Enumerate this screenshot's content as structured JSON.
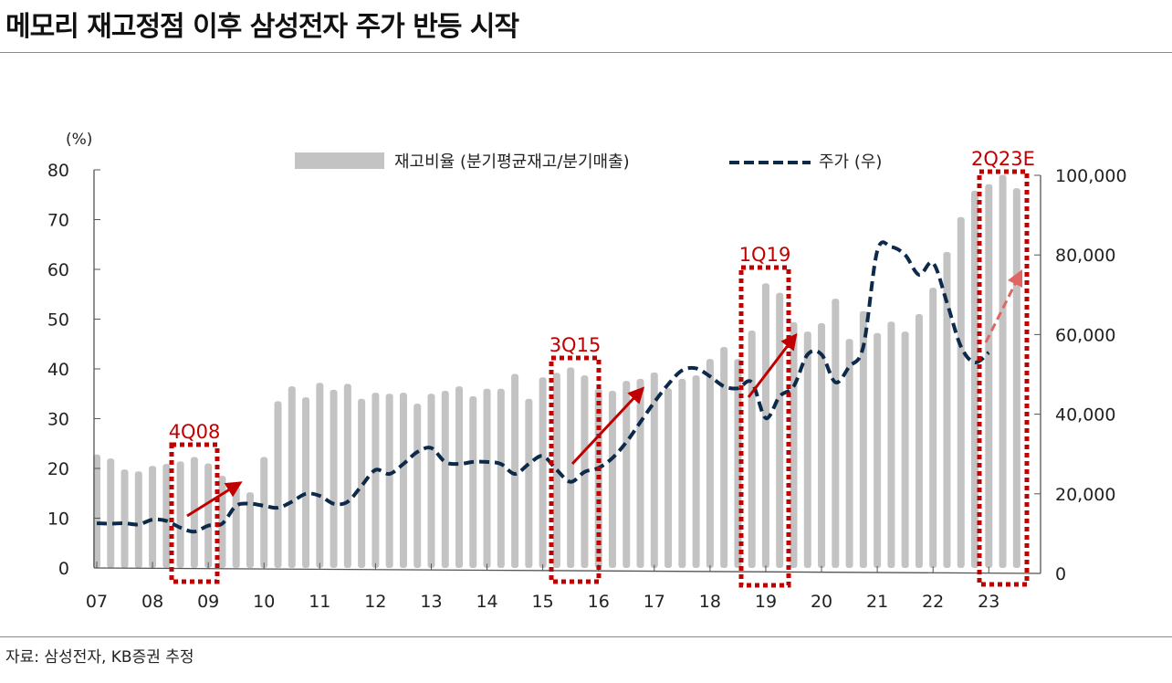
{
  "title": "메모리 재고정점 이후 삼성전자 주가 반등 시작",
  "source": "자료: 삼성전자, KB증권 추정",
  "colors": {
    "bar": "#c3c3c3",
    "line": "#0d2a4a",
    "highlight": "#c00000",
    "forecast_arrow": "#e06666"
  },
  "chart_data": {
    "type": "bar+line",
    "title": "메모리 재고정점 이후 삼성전자 주가 반등 시작",
    "left_axis": {
      "unit_label": "(%)",
      "range": [
        0,
        80
      ],
      "ticks": [
        0,
        10,
        20,
        30,
        40,
        50,
        60,
        70,
        80
      ]
    },
    "right_axis": {
      "range": [
        0,
        100000
      ],
      "ticks": [
        "0",
        "20,000",
        "40,000",
        "60,000",
        "80,000",
        "100,000"
      ],
      "tick_values": [
        0,
        20000,
        40000,
        60000,
        80000,
        100000
      ]
    },
    "x_tick_labels": [
      "07",
      "08",
      "09",
      "10",
      "11",
      "12",
      "13",
      "14",
      "15",
      "16",
      "17",
      "18",
      "19",
      "20",
      "21",
      "22",
      "23"
    ],
    "legend": [
      {
        "name": "재고비율 (분기평균재고/분기매출)",
        "type": "bar"
      },
      {
        "name": "주가 (우)",
        "type": "dashed-line"
      }
    ],
    "legend_position": "top",
    "series": [
      {
        "name": "재고비율 (분기평균재고/분기매출)",
        "axis": "left",
        "start": "1Q07",
        "values": [
          22.8,
          22,
          19.8,
          19.4,
          20.5,
          20.9,
          21.4,
          22.3,
          21,
          18.5,
          16.5,
          15.2,
          22.3,
          33.5,
          36.5,
          34.3,
          37.2,
          35.8,
          37,
          34,
          35.2,
          35,
          35.2,
          33,
          35,
          35.6,
          36.5,
          34.5,
          36,
          36,
          39,
          34,
          38.3,
          39.2,
          40.3,
          38.7,
          36,
          35.6,
          37.6,
          38,
          39.3,
          36.1,
          38,
          38.7,
          42,
          44.4,
          42,
          47.7,
          57.2,
          55.3,
          49.4,
          47.5,
          49.2,
          54.1,
          46,
          51.6,
          47.2,
          49.5,
          47.5,
          51,
          56.3,
          63.5,
          70.5,
          75.8,
          77.1,
          79,
          76.3
        ]
      },
      {
        "name": "주가 (우)",
        "axis": "right",
        "start": "1Q07",
        "values": [
          12600,
          12500,
          12600,
          12300,
          13500,
          13200,
          11500,
          10500,
          12000,
          12500,
          17000,
          17500,
          17000,
          16500,
          18000,
          20000,
          19500,
          17500,
          18000,
          22000,
          26000,
          25000,
          27500,
          30500,
          31500,
          28000,
          27500,
          28000,
          28000,
          27500,
          25000,
          27500,
          29500,
          26000,
          23000,
          25500,
          26500,
          29000,
          33000,
          38000,
          43000,
          47500,
          51000,
          51500,
          49500,
          47000,
          46500,
          48000,
          39000,
          44500,
          47000,
          55000,
          55000,
          48000,
          52000,
          57000,
          81000,
          82000,
          80000,
          75000,
          78000,
          68000,
          57000,
          53000,
          55500
        ]
      }
    ],
    "annotations": [
      {
        "label": "4Q08",
        "quarter_index": 7,
        "type": "dotted-box + arrow up"
      },
      {
        "label": "3Q15",
        "quarter_index": 34,
        "type": "dotted-box + arrow up"
      },
      {
        "label": "1Q19",
        "quarter_index": 48,
        "type": "dotted-box + arrow up"
      },
      {
        "label": "2Q23E",
        "quarter_index": 65,
        "type": "dotted-box + dashed arrow up"
      }
    ]
  }
}
